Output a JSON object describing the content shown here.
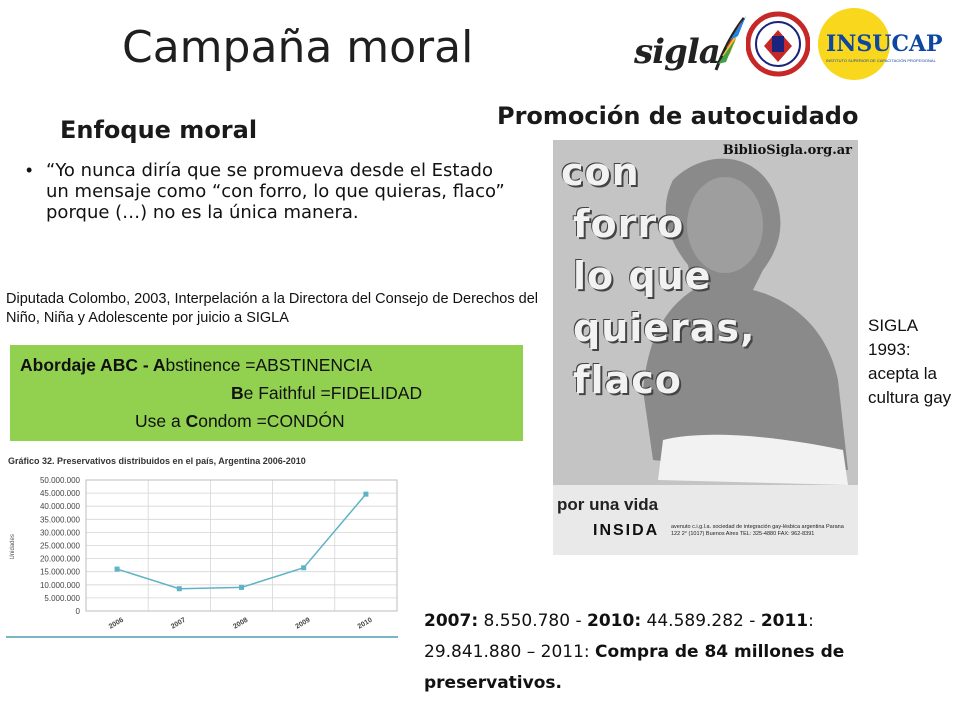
{
  "slide": {
    "title": "Campaña moral",
    "logos": {
      "sigla": "sigla",
      "ics_text": "I.C.S.",
      "insucap": "INSUCAP",
      "insucap_sub": "INSTITUTO SUPERIOR DE CAPACITACIÓN PROFESIONAL"
    },
    "left_heading": "Enfoque moral",
    "right_heading": "Promoción de autocuidado",
    "quote": "“Yo nunca diría que se promueva desde el Estado un mensaje como “con forro, lo que quieras, flaco” porque (…) no es la única manera.",
    "citation": "Diputada Colombo, 2003, Interpelación a la Directora del Consejo de Derechos del Niño, Niña y Adolescente por juicio a SIGLA",
    "abc": {
      "row1_a": "Abordaje ABC - ",
      "row1_b": "A",
      "row1_c": "bstinence  =ABSTINENCIA",
      "row2_a": "B",
      "row2_b": "e Faithful  =FIDELIDAD",
      "row3_a": "Use a ",
      "row3_b": "C",
      "row3_c": "ondom     =CONDÓN"
    },
    "poster": {
      "url": "BiblioSigla.org.ar",
      "words": [
        "con",
        "forro",
        "lo que",
        "quieras,",
        "flaco"
      ],
      "footer": "por una vida",
      "brand": "INSIDA",
      "fine_print": "avenuto  c.i.g.l.a. sociedad de integración gay-lésbica argentina Parana 122 2° (1017) Buenos Aires TEL: 325-4880 FAX: 962-8391"
    },
    "side_note": "SIGLA 1993: acepta la cultura gay",
    "stats": {
      "l1": "2007:",
      "v1": " 8.550.780 -   ",
      "l2": "2010:",
      "v2": " 44.589.282  -  ",
      "l3": "2011",
      "v3": ": 29.841.880 – 2011:  ",
      "bold_end": "Compra de 84 millones de preservativos."
    }
  },
  "chart_data": {
    "type": "line",
    "title": "Gráfico 32. Preservativos distribuidos en el país, Argentina 2006-2010",
    "ylabel": "Unidades",
    "categories": [
      "2006",
      "2007",
      "2008",
      "2009",
      "2010"
    ],
    "values": [
      16000000,
      8500000,
      9000000,
      16500000,
      44600000
    ],
    "yticks": [
      "0",
      "5.000.000",
      "10.000.000",
      "15.000.000",
      "20.000.000",
      "25.000.000",
      "30.000.000",
      "35.000.000",
      "40.000.000",
      "45.000.000",
      "50.000.000"
    ],
    "ylim": [
      0,
      50000000
    ],
    "line_color": "#5fb3c6"
  }
}
